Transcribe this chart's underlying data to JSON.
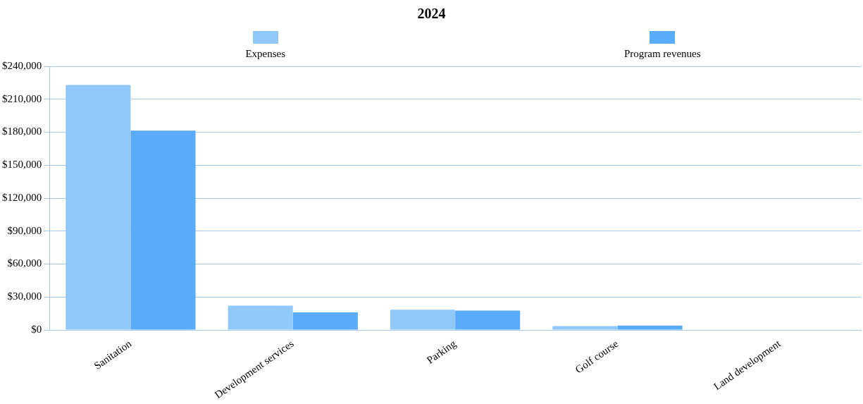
{
  "chart_data": {
    "type": "bar",
    "title": "2024",
    "categories": [
      "Sanitation",
      "Development services",
      "Parking",
      "Golf course",
      "Land development"
    ],
    "series": [
      {
        "name": "Expenses",
        "color": "#90c8fa",
        "values": [
          223000,
          22200,
          18400,
          3600,
          null
        ]
      },
      {
        "name": "Program revenues",
        "color": "#5aabfa",
        "values": [
          181500,
          16000,
          17600,
          4000,
          null
        ]
      }
    ],
    "ylim": [
      0,
      240000
    ],
    "yticks": [
      {
        "value": 0,
        "label": "$0"
      },
      {
        "value": 30000,
        "label": "$30,000"
      },
      {
        "value": 60000,
        "label": "$60,000"
      },
      {
        "value": 90000,
        "label": "$90,000"
      },
      {
        "value": 120000,
        "label": "$120,000"
      },
      {
        "value": 150000,
        "label": "$150,000"
      },
      {
        "value": 180000,
        "label": "$180,000"
      },
      {
        "value": 210000,
        "label": "$210,000"
      },
      {
        "value": 240000,
        "label": "$240,000"
      }
    ],
    "grid": "y",
    "legend": "top"
  }
}
